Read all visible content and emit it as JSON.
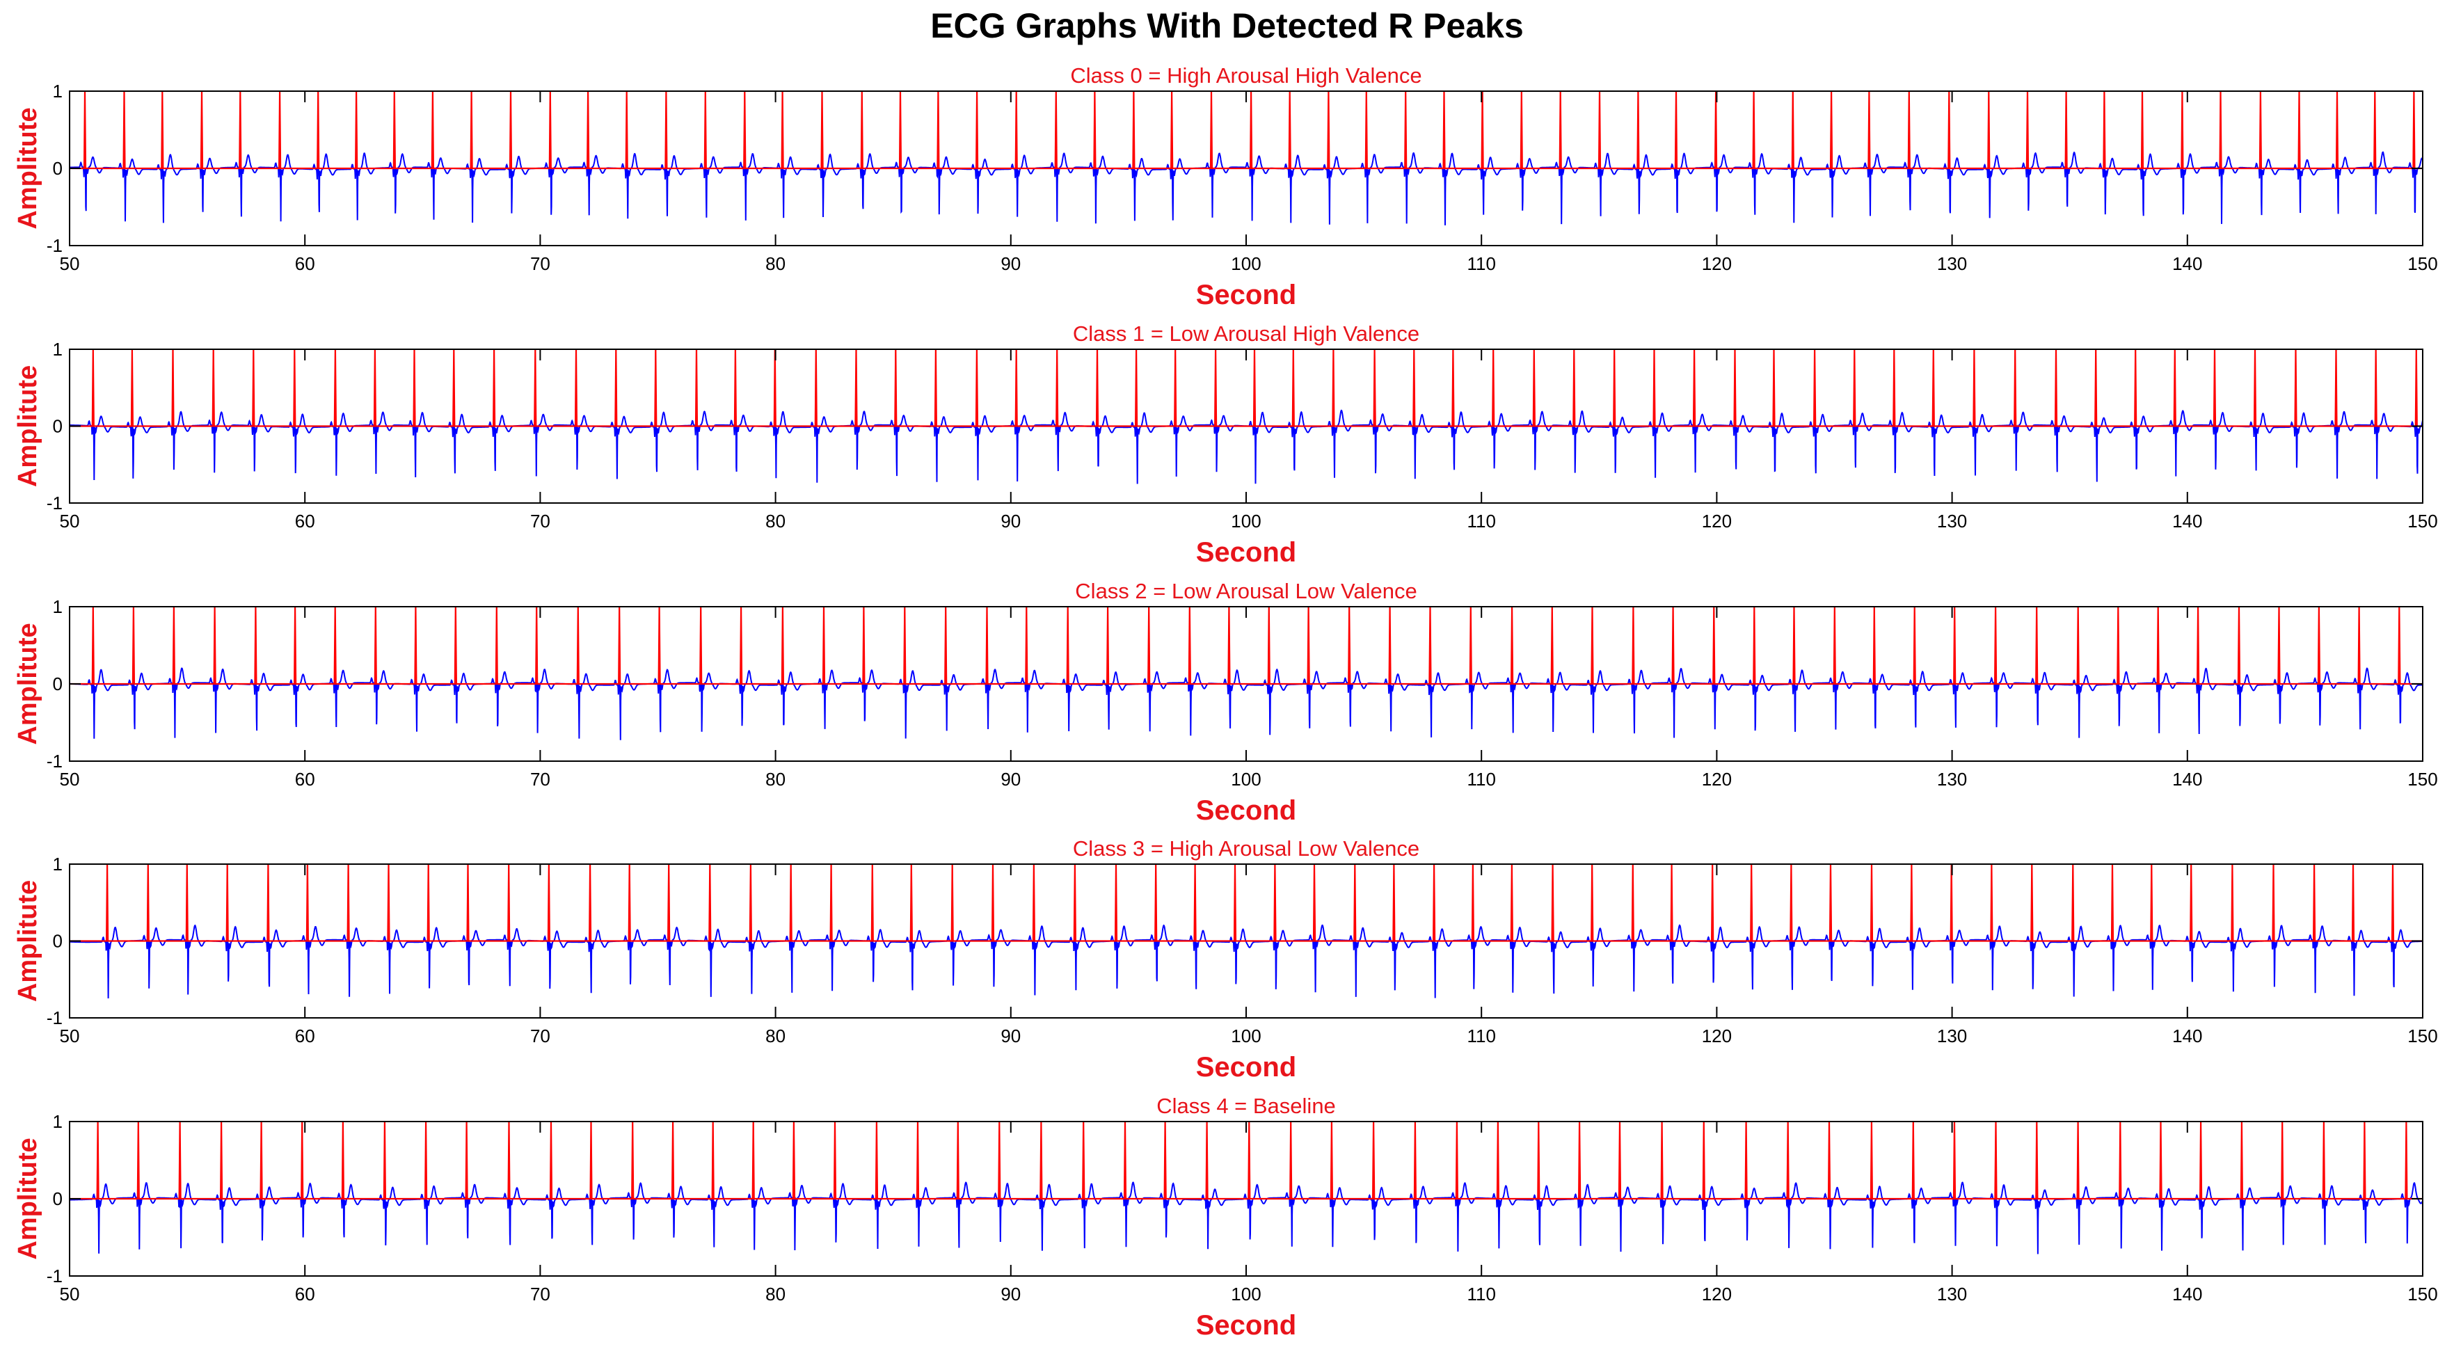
{
  "figure": {
    "title": "ECG Graphs With Detected R Peaks"
  },
  "colors": {
    "ecg_signal": "#0000ff",
    "r_peaks": "#ff0000",
    "labels": "#e8141b",
    "axes": "#000000",
    "background": "#ffffff"
  },
  "chart_data": [
    {
      "type": "line",
      "title": "Class 0 = High Arousal High Valence",
      "xlabel": "Second",
      "ylabel": "Amplitute",
      "xlim": [
        50,
        150
      ],
      "ylim": [
        -1,
        1
      ],
      "xticks": [
        50,
        60,
        70,
        80,
        90,
        100,
        110,
        120,
        130,
        140,
        150
      ],
      "yticks": [
        -1,
        0,
        1
      ],
      "grid": false,
      "beat_interval_s": 1.65,
      "first_beat_s": 50.65,
      "series": [
        {
          "color": "#0000ff",
          "r_amplitude": 0.4,
          "s_amplitude": -0.68
        },
        {
          "color": "#ff0000",
          "r_peak_amplitude": 1.0,
          "baseline": 0
        }
      ]
    },
    {
      "type": "line",
      "title": "Class 1 = Low Arousal High Valence",
      "xlabel": "Second",
      "ylabel": "Amplitute",
      "xlim": [
        50,
        150
      ],
      "ylim": [
        -1,
        1
      ],
      "xticks": [
        50,
        60,
        70,
        80,
        90,
        100,
        110,
        120,
        130,
        140,
        150
      ],
      "yticks": [
        -1,
        0,
        1
      ],
      "grid": false,
      "beat_interval_s": 1.7,
      "first_beat_s": 51.0,
      "series": [
        {
          "color": "#0000ff",
          "r_amplitude": 0.42,
          "s_amplitude": -0.68
        },
        {
          "color": "#ff0000",
          "r_peak_amplitude": 1.0,
          "baseline": 0
        }
      ]
    },
    {
      "type": "line",
      "title": "Class 2 = Low Arousal Low Valence",
      "xlabel": "Second",
      "ylabel": "Amplitute",
      "xlim": [
        50,
        150
      ],
      "ylim": [
        -1,
        1
      ],
      "xticks": [
        50,
        60,
        70,
        80,
        90,
        100,
        110,
        120,
        130,
        140,
        150
      ],
      "yticks": [
        -1,
        0,
        1
      ],
      "grid": false,
      "beat_interval_s": 1.72,
      "first_beat_s": 51.0,
      "series": [
        {
          "color": "#0000ff",
          "r_amplitude": 0.42,
          "s_amplitude": -0.66
        },
        {
          "color": "#ff0000",
          "r_peak_amplitude": 1.0,
          "baseline": 0
        }
      ]
    },
    {
      "type": "line",
      "title": "Class 3 = High Arousal Low Valence",
      "xlabel": "Second",
      "ylabel": "Amplitute",
      "xlim": [
        50,
        150
      ],
      "ylim": [
        -1,
        1
      ],
      "xticks": [
        50,
        60,
        70,
        80,
        90,
        100,
        110,
        120,
        130,
        140,
        150
      ],
      "yticks": [
        -1,
        0,
        1
      ],
      "grid": false,
      "beat_interval_s": 1.7,
      "first_beat_s": 51.6,
      "series": [
        {
          "color": "#0000ff",
          "r_amplitude": 0.4,
          "s_amplitude": -0.68
        },
        {
          "color": "#ff0000",
          "r_peak_amplitude": 1.0,
          "baseline": 0
        }
      ]
    },
    {
      "type": "line",
      "title": "Class 4 = Baseline",
      "xlabel": "Second",
      "ylabel": "Amplitute",
      "xlim": [
        50,
        150
      ],
      "ylim": [
        -1,
        1
      ],
      "xticks": [
        50,
        60,
        70,
        80,
        90,
        100,
        110,
        120,
        130,
        140,
        150
      ],
      "yticks": [
        -1,
        0,
        1
      ],
      "grid": false,
      "beat_interval_s": 1.75,
      "first_beat_s": 51.2,
      "series": [
        {
          "color": "#0000ff",
          "r_amplitude": 0.4,
          "s_amplitude": -0.65
        },
        {
          "color": "#ff0000",
          "r_peak_amplitude": 1.0,
          "baseline": 0
        }
      ]
    }
  ]
}
